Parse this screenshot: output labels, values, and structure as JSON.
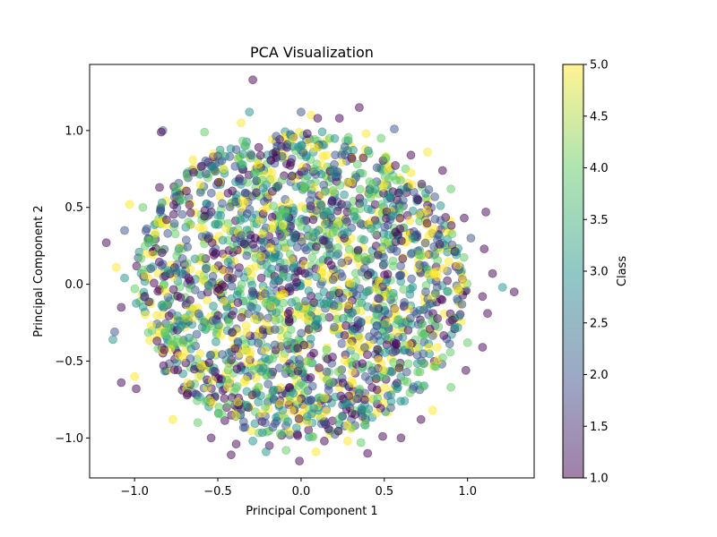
{
  "chart_data": {
    "type": "scatter",
    "title": "PCA Visualization",
    "xlabel": "Principal Component 1",
    "ylabel": "Principal Component 2",
    "xlim": [
      -1.27,
      1.4
    ],
    "ylim": [
      -1.26,
      1.43
    ],
    "xticks": [
      -1.0,
      -0.5,
      0.0,
      0.5,
      1.0
    ],
    "xtick_labels": [
      "−1.0",
      "−0.5",
      "0.0",
      "0.5",
      "1.0"
    ],
    "yticks": [
      -1.0,
      -0.5,
      0.0,
      0.5,
      1.0
    ],
    "ytick_labels": [
      "−1.0",
      "−0.5",
      "0.0",
      "0.5",
      "1.0"
    ],
    "grid": false,
    "point_alpha": 0.5,
    "colormap": "viridis",
    "colormap_stops": [
      "#440154",
      "#3b528b",
      "#21918c",
      "#5ec962",
      "#fde725"
    ],
    "colorbar": {
      "label": "Class",
      "range": [
        1.0,
        5.0
      ],
      "ticks": [
        1.0,
        1.5,
        2.0,
        2.5,
        3.0,
        3.5,
        4.0,
        4.5,
        5.0
      ],
      "tick_labels": [
        "1.0",
        "1.5",
        "2.0",
        "2.5",
        "3.0",
        "3.5",
        "4.0",
        "4.5",
        "5.0"
      ]
    },
    "classes": [
      1,
      2,
      3,
      4,
      5
    ],
    "points": [
      {
        "x": -0.29,
        "y": 1.33,
        "class": 1
      },
      {
        "x": 0.35,
        "y": 1.15,
        "class": 1
      },
      {
        "x": -0.31,
        "y": 1.12,
        "class": 3
      },
      {
        "x": 0.0,
        "y": 1.12,
        "class": 2
      },
      {
        "x": 0.06,
        "y": 1.1,
        "class": 5
      },
      {
        "x": 0.1,
        "y": 1.08,
        "class": 1
      },
      {
        "x": 0.23,
        "y": 1.08,
        "class": 1
      },
      {
        "x": -0.36,
        "y": 1.05,
        "class": 5
      },
      {
        "x": 0.39,
        "y": 0.98,
        "class": 5
      },
      {
        "x": 0.56,
        "y": 1.01,
        "class": 2
      },
      {
        "x": -0.83,
        "y": 1.0,
        "class": 2
      },
      {
        "x": -0.84,
        "y": 0.99,
        "class": 1
      },
      {
        "x": -0.58,
        "y": 0.99,
        "class": 4
      },
      {
        "x": 0.48,
        "y": 0.95,
        "class": 4
      },
      {
        "x": 0.76,
        "y": 0.86,
        "class": 5
      },
      {
        "x": 0.66,
        "y": 0.84,
        "class": 1
      },
      {
        "x": -0.65,
        "y": 0.81,
        "class": 5
      },
      {
        "x": 0.85,
        "y": 0.74,
        "class": 1
      },
      {
        "x": 0.9,
        "y": 0.62,
        "class": 4
      },
      {
        "x": -0.85,
        "y": 0.63,
        "class": 1
      },
      {
        "x": -1.03,
        "y": 0.52,
        "class": 5
      },
      {
        "x": -0.95,
        "y": 0.5,
        "class": 4
      },
      {
        "x": 1.11,
        "y": 0.47,
        "class": 1
      },
      {
        "x": 0.98,
        "y": 0.43,
        "class": 1
      },
      {
        "x": -1.06,
        "y": 0.35,
        "class": 2
      },
      {
        "x": -1.17,
        "y": 0.27,
        "class": 1
      },
      {
        "x": 1.02,
        "y": 0.3,
        "class": 2
      },
      {
        "x": 1.1,
        "y": 0.23,
        "class": 1
      },
      {
        "x": -1.11,
        "y": 0.11,
        "class": 5
      },
      {
        "x": -1.06,
        "y": 0.04,
        "class": 3
      },
      {
        "x": 1.15,
        "y": 0.07,
        "class": 1
      },
      {
        "x": 1.21,
        "y": -0.02,
        "class": 3
      },
      {
        "x": 1.28,
        "y": -0.05,
        "class": 1
      },
      {
        "x": -1.08,
        "y": -0.15,
        "class": 1
      },
      {
        "x": 1.09,
        "y": -0.08,
        "class": 1
      },
      {
        "x": 1.12,
        "y": -0.19,
        "class": 1
      },
      {
        "x": -1.12,
        "y": -0.31,
        "class": 2
      },
      {
        "x": -1.13,
        "y": -0.36,
        "class": 3
      },
      {
        "x": 1.09,
        "y": -0.41,
        "class": 1
      },
      {
        "x": 1.0,
        "y": -0.38,
        "class": 4
      },
      {
        "x": -1.08,
        "y": -0.64,
        "class": 1
      },
      {
        "x": -1.0,
        "y": -0.6,
        "class": 5
      },
      {
        "x": -0.99,
        "y": -0.68,
        "class": 1
      },
      {
        "x": 0.99,
        "y": -0.56,
        "class": 1
      },
      {
        "x": 0.9,
        "y": -0.67,
        "class": 4
      },
      {
        "x": 0.79,
        "y": -0.82,
        "class": 5
      },
      {
        "x": 0.72,
        "y": -0.88,
        "class": 1
      },
      {
        "x": -0.77,
        "y": -0.88,
        "class": 5
      },
      {
        "x": -0.62,
        "y": -0.9,
        "class": 4
      },
      {
        "x": -0.54,
        "y": -1.0,
        "class": 1
      },
      {
        "x": -0.39,
        "y": -1.04,
        "class": 1
      },
      {
        "x": -0.29,
        "y": -1.02,
        "class": 3
      },
      {
        "x": -0.42,
        "y": -1.11,
        "class": 1
      },
      {
        "x": -0.19,
        "y": -1.05,
        "class": 1
      },
      {
        "x": -0.21,
        "y": -1.09,
        "class": 3
      },
      {
        "x": -0.09,
        "y": -1.08,
        "class": 4
      },
      {
        "x": -0.01,
        "y": -1.15,
        "class": 1
      },
      {
        "x": 0.09,
        "y": -1.09,
        "class": 5
      },
      {
        "x": 0.14,
        "y": -1.02,
        "class": 1
      },
      {
        "x": 0.28,
        "y": -1.02,
        "class": 5
      },
      {
        "x": 0.36,
        "y": -1.03,
        "class": 4
      },
      {
        "x": 0.4,
        "y": -1.1,
        "class": 1
      },
      {
        "x": 0.49,
        "y": -0.99,
        "class": 1
      },
      {
        "x": 0.6,
        "y": -1.0,
        "class": 1
      }
    ],
    "cloud": {
      "center": [
        0.0,
        0.0
      ],
      "radius_x": 1.0,
      "radius_y": 1.0,
      "count": 2200
    }
  }
}
